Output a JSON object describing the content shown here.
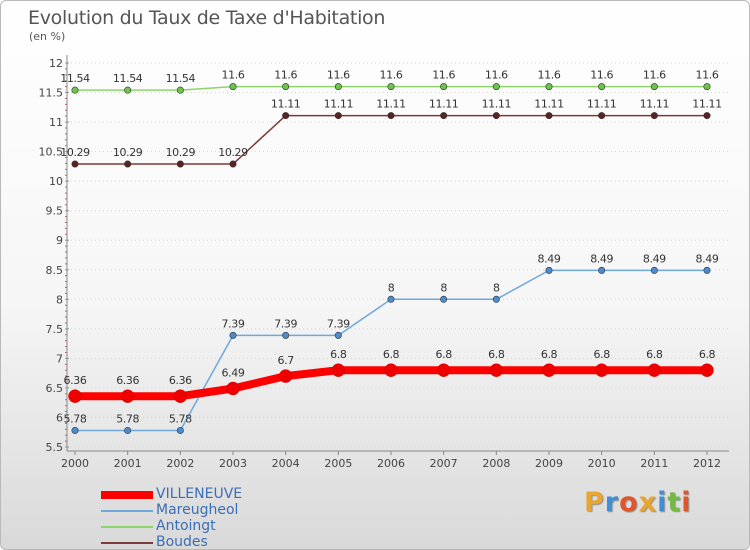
{
  "header": {
    "title": "Evolution du Taux de Taxe d'Habitation",
    "unit": "(en %)"
  },
  "logo": {
    "text": "Proxiti",
    "colors": [
      "#e8a531",
      "#3f8fd6",
      "#e05529",
      "#e8a531",
      "#3f8fd6",
      "#75b843",
      "#e05529"
    ]
  },
  "chart_data": {
    "type": "line",
    "title": "Evolution du Taux de Taxe d'Habitation",
    "ylabel": "(en %)",
    "xlabel": "",
    "ylim": [
      5.5,
      12
    ],
    "y_ticks": [
      "5.5",
      "6",
      "6.5",
      "7",
      "7.5",
      "8",
      "8.5",
      "9",
      "9.5",
      "10",
      "10.5",
      "11",
      "11.5",
      "12"
    ],
    "categories": [
      "2000",
      "2001",
      "2002",
      "2003",
      "2004",
      "2005",
      "2006",
      "2007",
      "2008",
      "2009",
      "2010",
      "2011",
      "2012"
    ],
    "grid": "horizontal dotted",
    "legend_position": "bottom-left",
    "series": [
      {
        "name": "VILLENEUVE",
        "color": "#ff0000",
        "emphasis": "thick",
        "values": [
          6.36,
          6.36,
          6.36,
          6.49,
          6.7,
          6.8,
          6.8,
          6.8,
          6.8,
          6.8,
          6.8,
          6.8,
          6.8
        ],
        "labels": [
          "6.36",
          "6.36",
          "6.36",
          "6.49",
          "6.7",
          "6.8",
          "6.8",
          "6.8",
          "6.8",
          "6.8",
          "6.8",
          "6.8",
          "6.8"
        ]
      },
      {
        "name": "Mareugheol",
        "color": "#6fa8dc",
        "marker_color": "#4a8ccf",
        "values": [
          5.78,
          5.78,
          5.78,
          7.39,
          7.39,
          7.39,
          8,
          8,
          8,
          8.49,
          8.49,
          8.49,
          8.49
        ],
        "labels": [
          "5.78",
          "5.78",
          "5.78",
          "7.39",
          "7.39",
          "7.39",
          "8",
          "8",
          "8",
          "8.49",
          "8.49",
          "8.49",
          "8.49"
        ]
      },
      {
        "name": "Antoingt",
        "color": "#8fd36b",
        "marker_color": "#6cc44a",
        "values": [
          11.54,
          11.54,
          11.54,
          11.6,
          11.6,
          11.6,
          11.6,
          11.6,
          11.6,
          11.6,
          11.6,
          11.6,
          11.6
        ],
        "labels": [
          "11.54",
          "11.54",
          "11.54",
          "11.6",
          "11.6",
          "11.6",
          "11.6",
          "11.6",
          "11.6",
          "11.6",
          "11.6",
          "11.6",
          "11.6"
        ]
      },
      {
        "name": "Boudes",
        "color": "#7b3a3a",
        "marker_color": "#5a2222",
        "values": [
          10.29,
          10.29,
          10.29,
          10.29,
          11.11,
          11.11,
          11.11,
          11.11,
          11.11,
          11.11,
          11.11,
          11.11,
          11.11
        ],
        "labels": [
          "10.29",
          "10.29",
          "10.29",
          "10.29",
          "11.11",
          "11.11",
          "11.11",
          "11.11",
          "11.11",
          "11.11",
          "11.11",
          "11.11",
          "11.11"
        ]
      }
    ]
  }
}
